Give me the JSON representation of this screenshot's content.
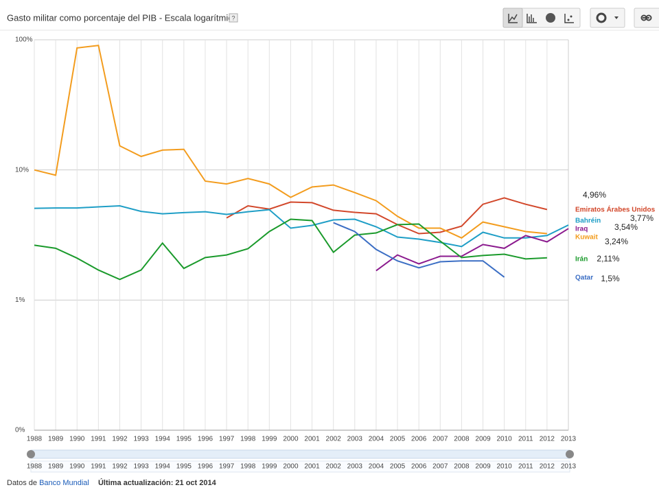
{
  "header": {
    "title": "Gasto militar como porcentaje del PIB - Escala logarítmica",
    "help": "?"
  },
  "chart_data": {
    "type": "line",
    "log_y": true,
    "grid": true,
    "x": [
      1988,
      1989,
      1990,
      1991,
      1992,
      1993,
      1994,
      1995,
      1996,
      1997,
      1998,
      1999,
      2000,
      2001,
      2002,
      2003,
      2004,
      2005,
      2006,
      2007,
      2008,
      2009,
      2010,
      2011,
      2012,
      2013
    ],
    "xlim": [
      1988,
      2013
    ],
    "ylim": [
      0.1,
      100
    ],
    "yticks": [
      {
        "value": 100,
        "label": "100%"
      },
      {
        "value": 10,
        "label": "10%"
      },
      {
        "value": 1,
        "label": "1%"
      },
      {
        "value": 0.1,
        "label": "0%"
      }
    ],
    "series": [
      {
        "name": "Emiratos Árabes Unidos",
        "color": "#d2472a",
        "values": [
          null,
          null,
          null,
          null,
          null,
          null,
          null,
          null,
          null,
          4.28,
          5.3,
          5.0,
          5.66,
          5.6,
          4.9,
          4.72,
          4.6,
          3.8,
          3.24,
          3.32,
          3.7,
          5.45,
          6.1,
          5.45,
          4.96,
          null
        ],
        "value_labels": [
          null,
          null,
          null,
          null,
          null,
          null,
          null,
          null,
          null,
          null,
          null,
          null,
          null,
          null,
          null,
          null,
          null,
          null,
          null,
          null,
          null,
          null,
          null,
          null,
          "4,96%",
          null
        ]
      },
      {
        "name": "Bahréin",
        "color": "#1e9ec6",
        "values": [
          5.07,
          5.1,
          5.1,
          5.2,
          5.3,
          4.8,
          4.6,
          4.7,
          4.77,
          4.55,
          4.77,
          4.95,
          3.57,
          3.75,
          4.13,
          4.18,
          3.66,
          3.05,
          2.94,
          2.77,
          2.58,
          3.32,
          3.0,
          3.0,
          3.13,
          3.77
        ],
        "value_labels": [
          null,
          null,
          null,
          null,
          null,
          null,
          null,
          null,
          null,
          null,
          null,
          null,
          null,
          null,
          null,
          null,
          null,
          null,
          null,
          null,
          null,
          null,
          null,
          null,
          null,
          "3,77%"
        ]
      },
      {
        "name": "Iraq",
        "color": "#8b1a8e",
        "values": [
          null,
          null,
          null,
          null,
          null,
          null,
          null,
          null,
          null,
          null,
          null,
          null,
          null,
          null,
          null,
          null,
          1.68,
          2.22,
          1.9,
          2.17,
          2.17,
          2.67,
          2.5,
          3.13,
          2.8,
          3.54
        ],
        "value_labels": [
          null,
          null,
          null,
          null,
          null,
          null,
          null,
          null,
          null,
          null,
          null,
          null,
          null,
          null,
          null,
          null,
          null,
          null,
          null,
          null,
          null,
          null,
          null,
          null,
          null,
          "3,54%"
        ]
      },
      {
        "name": "Kuwait",
        "color": "#f39c1d",
        "values": [
          10,
          9.1,
          86.5,
          90.5,
          15.3,
          12.7,
          14.2,
          14.4,
          8.2,
          7.8,
          8.6,
          7.8,
          6.16,
          7.4,
          7.66,
          6.7,
          5.8,
          4.4,
          3.57,
          3.57,
          3.0,
          3.98,
          3.66,
          3.36,
          3.24,
          null
        ],
        "value_labels": [
          null,
          null,
          null,
          null,
          null,
          null,
          null,
          null,
          null,
          null,
          null,
          null,
          null,
          null,
          null,
          null,
          null,
          null,
          null,
          null,
          null,
          null,
          null,
          null,
          "3,24%",
          null
        ]
      },
      {
        "name": "Irán",
        "color": "#1a9a2b",
        "values": [
          2.64,
          2.5,
          2.1,
          1.7,
          1.44,
          1.7,
          2.74,
          1.75,
          2.12,
          2.22,
          2.48,
          3.36,
          4.18,
          4.08,
          2.33,
          3.16,
          3.28,
          3.8,
          3.84,
          2.84,
          2.12,
          2.2,
          2.25,
          2.07,
          2.11,
          null
        ],
        "value_labels": [
          null,
          null,
          null,
          null,
          null,
          null,
          null,
          null,
          null,
          null,
          null,
          null,
          null,
          null,
          null,
          null,
          null,
          null,
          null,
          null,
          null,
          null,
          null,
          null,
          "2,11%",
          null
        ]
      },
      {
        "name": "Qatar",
        "color": "#3b6ec4",
        "values": [
          null,
          null,
          null,
          null,
          null,
          null,
          null,
          null,
          null,
          null,
          null,
          null,
          null,
          null,
          3.93,
          3.36,
          2.45,
          2.0,
          1.77,
          1.97,
          2.0,
          2.0,
          1.5,
          null,
          null,
          null
        ],
        "value_labels": [
          null,
          null,
          null,
          null,
          null,
          null,
          null,
          null,
          null,
          null,
          null,
          null,
          null,
          null,
          null,
          null,
          null,
          null,
          null,
          null,
          null,
          null,
          "1,5%",
          null,
          null,
          null
        ]
      }
    ]
  },
  "footer": {
    "prefix": "Datos de",
    "source": "Banco Mundial",
    "updated": "Última actualización: 21 oct 2014"
  }
}
